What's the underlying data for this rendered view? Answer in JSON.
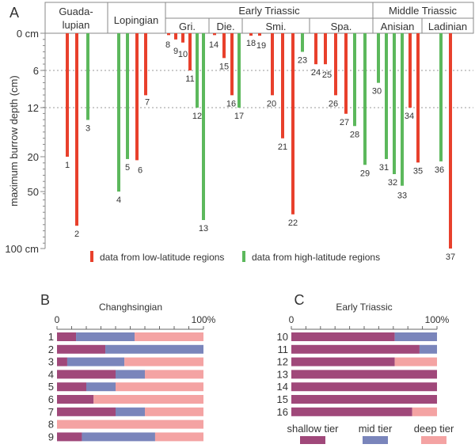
{
  "chart_data": [
    {
      "panel": "A",
      "type": "bar",
      "orientation": "vertical-downward",
      "ylabel": "maximum burrow depth (cm)",
      "y_ticks": [
        "0 cm",
        "6",
        "12",
        "20",
        "50",
        "100 cm"
      ],
      "y_scale": "piecewise (0-12 linear, then compressed 12-100)",
      "ylim": [
        0,
        100
      ],
      "gridlines_at": [
        6,
        12
      ],
      "periods": [
        {
          "label": "Guada-\nlupian",
          "line1": "Guada-",
          "line2": "lupian",
          "stages": []
        },
        {
          "label": "Lopingian",
          "stages": []
        },
        {
          "label": "Early Triassic",
          "stages": [
            "Gri.",
            "Die.",
            "Smi.",
            "Spa."
          ]
        },
        {
          "label": "Middle Triassic",
          "stages": [
            "Anisian",
            "Ladinian"
          ]
        }
      ],
      "legend": [
        {
          "label": "data from low-latitude regions",
          "color": "#e8402c"
        },
        {
          "label": "data from high-latitude regions",
          "color": "#5cb85c"
        }
      ],
      "legend_placement": "bottom",
      "series": [
        {
          "id": "1",
          "region": "low",
          "depth_cm": 20
        },
        {
          "id": "2",
          "region": "low",
          "depth_cm": 80
        },
        {
          "id": "3",
          "region": "high",
          "depth_cm": 14
        },
        {
          "id": "4",
          "region": "high",
          "depth_cm": 50
        },
        {
          "id": "5",
          "region": "high",
          "depth_cm": 22
        },
        {
          "id": "6",
          "region": "low",
          "depth_cm": 23
        },
        {
          "id": "7",
          "region": "low",
          "depth_cm": 10
        },
        {
          "id": "8",
          "region": "low",
          "depth_cm": 0.3
        },
        {
          "id": "9",
          "region": "low",
          "depth_cm": 1
        },
        {
          "id": "10",
          "region": "low",
          "depth_cm": 1.5
        },
        {
          "id": "11",
          "region": "low",
          "depth_cm": 6
        },
        {
          "id": "12",
          "region": "high",
          "depth_cm": 12
        },
        {
          "id": "13",
          "region": "high",
          "depth_cm": 75
        },
        {
          "id": "14",
          "region": "low",
          "depth_cm": 0.3
        },
        {
          "id": "15",
          "region": "low",
          "depth_cm": 4
        },
        {
          "id": "16",
          "region": "low",
          "depth_cm": 10
        },
        {
          "id": "17",
          "region": "high",
          "depth_cm": 12
        },
        {
          "id": "18",
          "region": "low",
          "depth_cm": 0.4
        },
        {
          "id": "19",
          "region": "low",
          "depth_cm": 0.4
        },
        {
          "id": "20",
          "region": "low",
          "depth_cm": 10
        },
        {
          "id": "21",
          "region": "low",
          "depth_cm": 17
        },
        {
          "id": "22",
          "region": "low",
          "depth_cm": 70
        },
        {
          "id": "23",
          "region": "high",
          "depth_cm": 3
        },
        {
          "id": "24",
          "region": "low",
          "depth_cm": 5
        },
        {
          "id": "25",
          "region": "low",
          "depth_cm": 5
        },
        {
          "id": "26",
          "region": "low",
          "depth_cm": 10
        },
        {
          "id": "27",
          "region": "low",
          "depth_cm": 13
        },
        {
          "id": "28",
          "region": "high",
          "depth_cm": 15
        },
        {
          "id": "29",
          "region": "high",
          "depth_cm": 27
        },
        {
          "id": "30",
          "region": "high",
          "depth_cm": 8
        },
        {
          "id": "31",
          "region": "high",
          "depth_cm": 22
        },
        {
          "id": "32",
          "region": "high",
          "depth_cm": 35
        },
        {
          "id": "33",
          "region": "high",
          "depth_cm": 45
        },
        {
          "id": "34",
          "region": "low",
          "depth_cm": 12
        },
        {
          "id": "35",
          "region": "low",
          "depth_cm": 25
        },
        {
          "id": "36",
          "region": "high",
          "depth_cm": 24
        },
        {
          "id": "37",
          "region": "low",
          "depth_cm": 100
        }
      ]
    },
    {
      "panel": "B",
      "type": "bar",
      "orientation": "horizontal-stacked-100",
      "title": "Changhsingian",
      "x_ticks": [
        "0",
        "100%"
      ],
      "xlim": [
        0,
        100
      ],
      "categories": [
        "1",
        "2",
        "3",
        "4",
        "5",
        "6",
        "7",
        "8",
        "9"
      ],
      "series": [
        {
          "name": "shallow tier",
          "color": "#a0487a",
          "values": [
            13,
            33,
            7,
            40,
            20,
            25,
            40,
            0,
            17
          ]
        },
        {
          "name": "mid tier",
          "color": "#7a85bb",
          "values": [
            40,
            67,
            39,
            20,
            20,
            0,
            20,
            0,
            50
          ]
        },
        {
          "name": "deep tier",
          "color": "#f4a3a3",
          "values": [
            47,
            0,
            54,
            40,
            60,
            75,
            40,
            100,
            33
          ]
        }
      ]
    },
    {
      "panel": "C",
      "type": "bar",
      "orientation": "horizontal-stacked-100",
      "title": "Early Triassic",
      "x_ticks": [
        "0",
        "100%"
      ],
      "xlim": [
        0,
        100
      ],
      "categories": [
        "10",
        "11",
        "12",
        "13",
        "14",
        "15",
        "16"
      ],
      "series": [
        {
          "name": "shallow tier",
          "color": "#a0487a",
          "values": [
            71,
            88,
            71,
            100,
            100,
            100,
            83
          ]
        },
        {
          "name": "mid tier",
          "color": "#7a85bb",
          "values": [
            29,
            12,
            0,
            0,
            0,
            0,
            0
          ]
        },
        {
          "name": "deep tier",
          "color": "#f4a3a3",
          "values": [
            0,
            0,
            29,
            0,
            0,
            0,
            17
          ]
        }
      ],
      "legend": [
        {
          "label": "shallow tier",
          "color": "#a0487a"
        },
        {
          "label": "mid tier",
          "color": "#7a85bb"
        },
        {
          "label": "deep tier",
          "color": "#f4a3a3"
        }
      ],
      "legend_placement": "bottom"
    }
  ],
  "panel_labels": {
    "a": "A",
    "b": "B",
    "c": "C"
  }
}
